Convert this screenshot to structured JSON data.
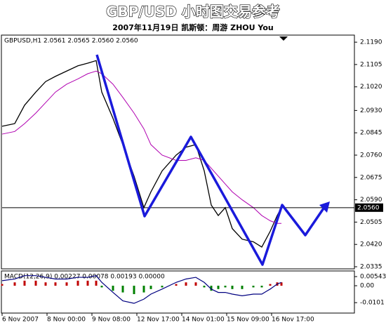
{
  "title": "GBP/USD 小时图交易参考",
  "subtitle": "2007年11月19日 凯斯顿：周游 ZHOU You",
  "chart_data": [
    {
      "type": "line",
      "label": "GBPUSD,H1 2.0561 2.0565 2.0560 2.0560",
      "x": [
        0,
        9,
        16,
        24,
        31,
        38,
        46,
        54,
        61,
        67,
        71,
        79,
        86,
        94,
        101,
        106,
        114,
        124,
        131,
        138,
        144,
        149,
        154,
        159,
        164,
        171,
        179,
        185,
        191,
        196,
        199
      ],
      "series": [
        {
          "color": "#000000",
          "values": [
            2.087,
            2.088,
            2.095,
            2.1,
            2.104,
            2.106,
            2.108,
            2.11,
            2.111,
            2.112,
            2.1,
            2.09,
            2.08,
            2.068,
            2.056,
            2.062,
            2.07,
            2.076,
            2.079,
            2.08,
            2.07,
            2.057,
            2.053,
            2.056,
            2.048,
            2.044,
            2.043,
            2.041,
            2.047,
            2.053,
            2.056
          ]
        },
        {
          "color": "#b000b0",
          "values": [
            2.084,
            2.085,
            2.088,
            2.092,
            2.096,
            2.1,
            2.103,
            2.105,
            2.107,
            2.108,
            2.107,
            2.103,
            2.098,
            2.092,
            2.086,
            2.08,
            2.076,
            2.074,
            2.074,
            2.075,
            2.074,
            2.071,
            2.068,
            2.065,
            2.062,
            2.059,
            2.056,
            2.053,
            2.051,
            2.05,
            2.05
          ]
        }
      ],
      "last_price": {
        "value": 2.056,
        "label": "2.0560"
      },
      "xlim": [
        0,
        251
      ],
      "xticks": [
        {
          "value": 0,
          "label": "6 Nov 2007"
        },
        {
          "value": 32,
          "label": "8 Nov 00:00"
        },
        {
          "value": 64,
          "label": "9 Nov 08:00"
        },
        {
          "value": 96,
          "label": "12 Nov 17:00"
        },
        {
          "value": 128,
          "label": "14 Nov 01:00"
        },
        {
          "value": 160,
          "label": "15 Nov 09:00"
        },
        {
          "value": 192,
          "label": "16 Nov 17:00"
        }
      ],
      "ylim": [
        2.0327,
        2.1217
      ],
      "yticks": [
        {
          "value": 2.119,
          "label": "2.1190"
        },
        2.1105,
        {
          "value": 2.102,
          "label": "2.1020"
        },
        {
          "value": 2.093,
          "label": "2.0930"
        },
        2.0845,
        {
          "value": 2.076,
          "label": "2.0760"
        },
        2.0675,
        {
          "value": 2.059,
          "label": "2.0590"
        },
        2.0505,
        {
          "value": 2.042,
          "label": "2.0420"
        },
        2.0335
      ]
    },
    {
      "type": "macd",
      "label": "MACD(12,26,9) 0.00227 0.00078 0.00193 0.00000",
      "x": [
        0,
        9,
        16,
        24,
        31,
        38,
        46,
        54,
        61,
        67,
        71,
        79,
        86,
        94,
        101,
        106,
        114,
        124,
        131,
        138,
        144,
        149,
        154,
        159,
        164,
        171,
        179,
        185,
        191,
        196,
        199
      ],
      "series": [
        {
          "color": "#008000",
          "values": [
            0.001,
            0.002,
            0.003,
            0.003,
            0.002,
            0.002,
            0.002,
            0.003,
            0.003,
            0.003,
            -0.001,
            -0.003,
            -0.004,
            -0.005,
            -0.004,
            -0.002,
            -0.001,
            0.001,
            0.002,
            0.002,
            -0.001,
            -0.003,
            -0.002,
            -0.001,
            -0.002,
            -0.002,
            -0.001,
            -0.001,
            0.001,
            0.002,
            0.002
          ]
        },
        {
          "color": "#000080",
          "values": [
            0.003,
            0.004,
            0.006,
            0.006,
            0.005,
            0.004,
            0.004,
            0.005,
            0.005,
            0.006,
            0.002,
            -0.004,
            -0.009,
            -0.0105,
            -0.008,
            -0.005,
            -0.002,
            0.002,
            0.004,
            0.005,
            0.002,
            -0.002,
            -0.004,
            -0.004,
            -0.005,
            -0.006,
            -0.005,
            -0.005,
            -0.002,
            0.001,
            0.002
          ]
        }
      ],
      "xlim": [
        0,
        251
      ],
      "ylim": [
        -0.0163,
        0.0088
      ],
      "yticks": [
        0.00543,
        {
          "value": 0,
          "label": "0.00"
        },
        -0.0101
      ]
    }
  ]
}
